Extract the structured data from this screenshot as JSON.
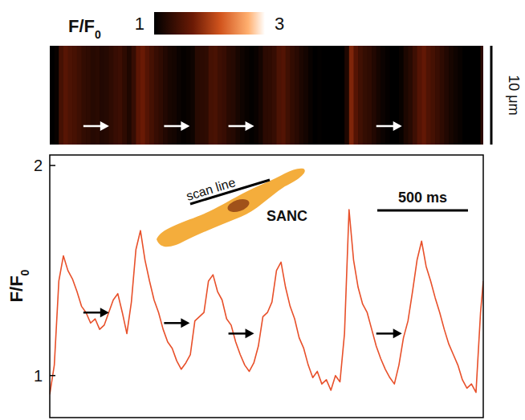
{
  "chart_data": {
    "type": "line",
    "colorbar": {
      "label": "F/F0",
      "range": [
        1,
        3
      ],
      "ticks": [
        1,
        3
      ]
    },
    "linescan": {
      "ylim": [
        0,
        10
      ],
      "scale_bar": {
        "value": 10,
        "label": "10 μm"
      }
    },
    "x": [
      0,
      25,
      50,
      75,
      100,
      125,
      150,
      175,
      200,
      225,
      250,
      275,
      300,
      325,
      350,
      375,
      400,
      425,
      450,
      475,
      500,
      525,
      550,
      575,
      600,
      625,
      650,
      675,
      700,
      725,
      750,
      775,
      800,
      825,
      850,
      875,
      900,
      925,
      950,
      975,
      1000,
      1025,
      1050,
      1075,
      1100,
      1125,
      1150,
      1175,
      1200,
      1225,
      1250,
      1275,
      1300,
      1325,
      1350,
      1375,
      1400,
      1425,
      1450,
      1475,
      1500,
      1525,
      1550,
      1575,
      1600,
      1625,
      1650,
      1675,
      1700,
      1725,
      1750,
      1775,
      1800,
      1825,
      1850,
      1875,
      1900,
      1925,
      1950,
      1975,
      2000,
      2025,
      2050,
      2075,
      2100,
      2125,
      2150,
      2175,
      2200,
      2225,
      2250,
      2275,
      2300,
      2325,
      2350,
      2375,
      2390
    ],
    "values": [
      0.91,
      1.05,
      1.45,
      1.57,
      1.5,
      1.46,
      1.4,
      1.33,
      1.3,
      1.25,
      1.27,
      1.22,
      1.24,
      1.3,
      1.36,
      1.39,
      1.3,
      1.2,
      1.35,
      1.6,
      1.69,
      1.55,
      1.45,
      1.36,
      1.3,
      1.22,
      1.16,
      1.13,
      1.07,
      1.03,
      1.06,
      1.1,
      1.26,
      1.28,
      1.3,
      1.45,
      1.48,
      1.4,
      1.36,
      1.27,
      1.24,
      1.16,
      1.1,
      1.05,
      1.02,
      1.06,
      1.14,
      1.28,
      1.3,
      1.35,
      1.5,
      1.54,
      1.42,
      1.33,
      1.27,
      1.18,
      1.13,
      1.05,
      0.99,
      1.02,
      0.96,
      0.98,
      0.93,
      1.0,
      0.97,
      1.2,
      1.79,
      1.55,
      1.42,
      1.34,
      1.3,
      1.22,
      1.14,
      1.08,
      1.03,
      0.99,
      0.96,
      1.05,
      1.18,
      1.26,
      1.4,
      1.55,
      1.64,
      1.52,
      1.45,
      1.37,
      1.3,
      1.22,
      1.15,
      1.1,
      1.05,
      0.98,
      0.94,
      0.96,
      0.92,
      1.3,
      1.45
    ],
    "color": "#e8502a",
    "xlim": [
      0,
      2390
    ],
    "ylim": [
      0.8,
      2.05
    ],
    "yticks": [
      1,
      2
    ],
    "y_label": "F/F0",
    "tick_labels": "y",
    "scale_bar": {
      "value": 500,
      "label": "500 ms"
    },
    "annotations": [
      "scan line",
      "SANC"
    ],
    "arrows": [
      {
        "x": 340,
        "y": 1.3
      },
      {
        "x": 785,
        "y": 1.25
      },
      {
        "x": 1140,
        "y": 1.2
      },
      {
        "x": 1955,
        "y": 1.2
      }
    ]
  }
}
